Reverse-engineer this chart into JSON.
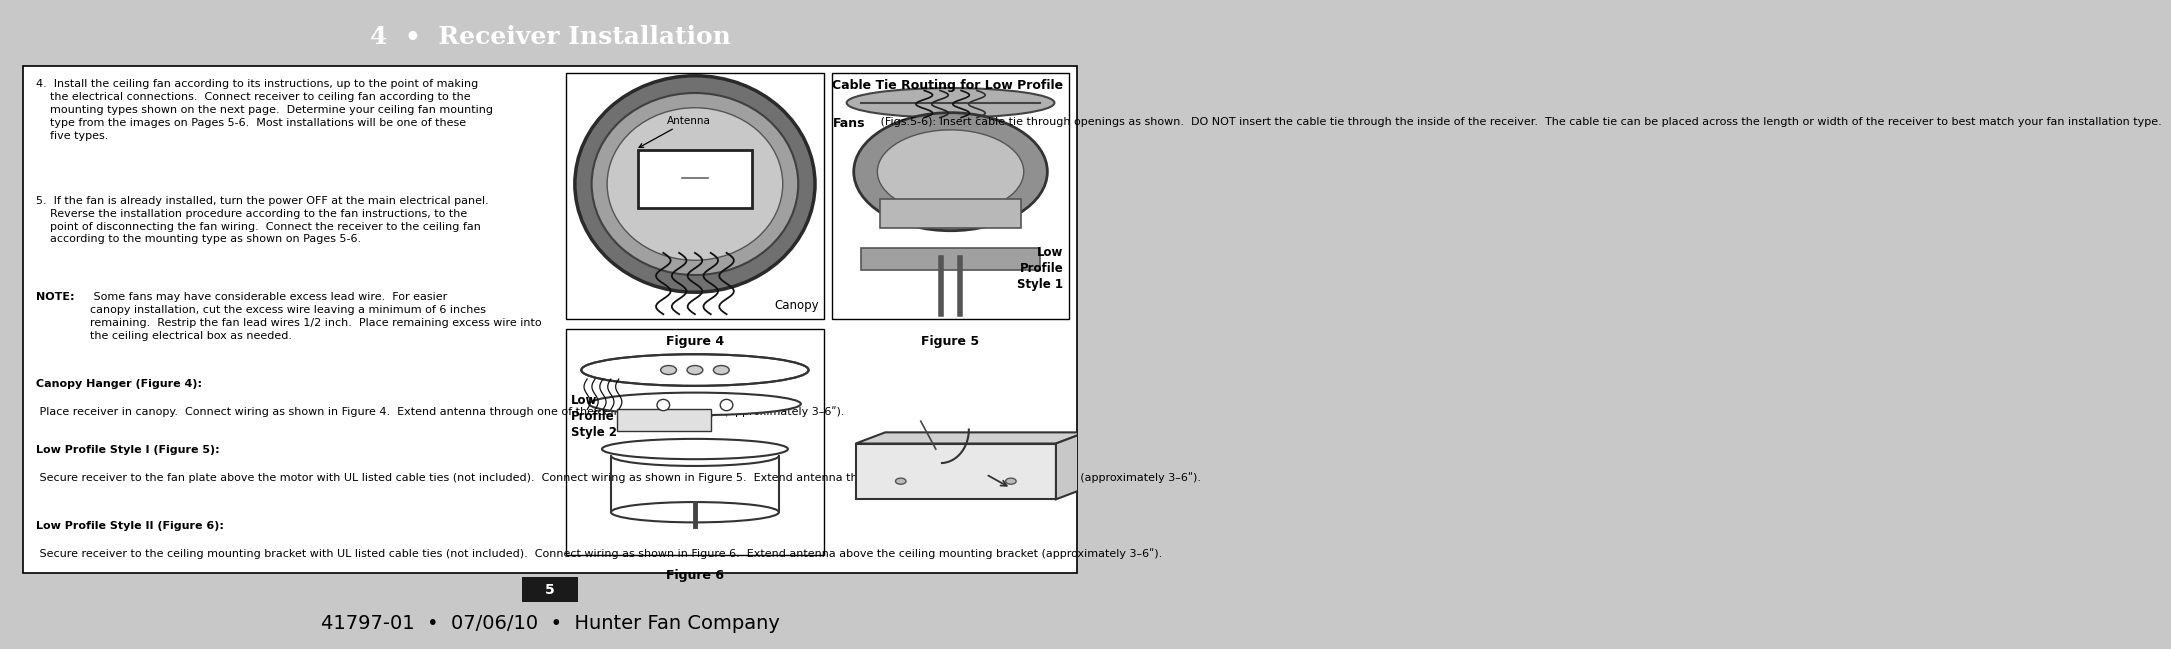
{
  "title": "4  •  Receiver Installation",
  "title_bg": "#1a1a1a",
  "title_color": "#ffffff",
  "page_bg": "#ffffff",
  "outer_bg": "#c8c8c8",
  "footer_text": "41797-01  •  07/06/10  •  Hunter Fan Company",
  "page_number": "5",
  "page_num_bg": "#1a1a1a",
  "page_num_color": "#ffffff",
  "body_text_1": "4.  Install the ceiling fan according to its instructions, up to the point of making\n    the electrical connections.  Connect receiver to ceiling fan according to the\n    mounting types shown on the next page.  Determine your ceiling fan mounting\n    type from the images on Pages 5-6.  Most installations will be one of these\n    five types.",
  "body_text_2": "5.  If the fan is already installed, turn the power OFF at the main electrical panel.\n    Reverse the installation procedure according to the fan instructions, to the\n    point of disconnecting the fan wiring.  Connect the receiver to the ceiling fan\n    according to the mounting type as shown on Pages 5-6.",
  "note_bold": "NOTE:",
  "note_text": " Some fans may have considerable excess lead wire.  For easier\ncanopy installation, cut the excess wire leaving a minimum of 6 inches\nremaining.  Restrip the fan lead wires 1/2 inch.  Place remaining excess wire into\nthe ceiling electrical box as needed.",
  "canopy_title": "Canopy Hanger (Figure 4):",
  "canopy_body": " Place receiver in canopy.  Connect wiring as shown in Figure 4.  Extend antenna through one of the ceiling plate openings (approximately 3–6ʺ).",
  "lp1_title": "Low Profile Style I (Figure 5):",
  "lp1_body": " Secure receiver to the fan plate above the motor with UL listed cable ties (not included).  Connect wiring as shown in Figure 5.  Extend antenna through one of the ceiling plate openings (approximately 3–6ʺ).",
  "lp2_title": "Low Profile Style II (Figure 6):",
  "lp2_body": " Secure receiver to the ceiling mounting bracket with UL listed cable ties (not included).  Connect wiring as shown in Figure 6.  Extend antenna above the ceiling mounting bracket (approximately 3–6ʺ).",
  "cable_tie_title1": "Cable Tie Routing for Low Profile",
  "cable_tie_title2": "Fans",
  "cable_tie_body": " (Figs.5-6): Insert cable tie through openings as shown.  DO NOT insert the cable tie through the inside of the receiver.  The cable tie can be placed across the length or width of the receiver to best match your fan installation type.",
  "fig4_label": "Figure 4",
  "fig4_sublabel": "Canopy",
  "fig4_antenna": "Antenna",
  "fig5_label": "Figure 5",
  "fig5_sublabel": "Low\nProfile\nStyle 1",
  "fig6_label": "Figure 6",
  "fig6_sublabel": "Low\nProfile\nStyle 2"
}
